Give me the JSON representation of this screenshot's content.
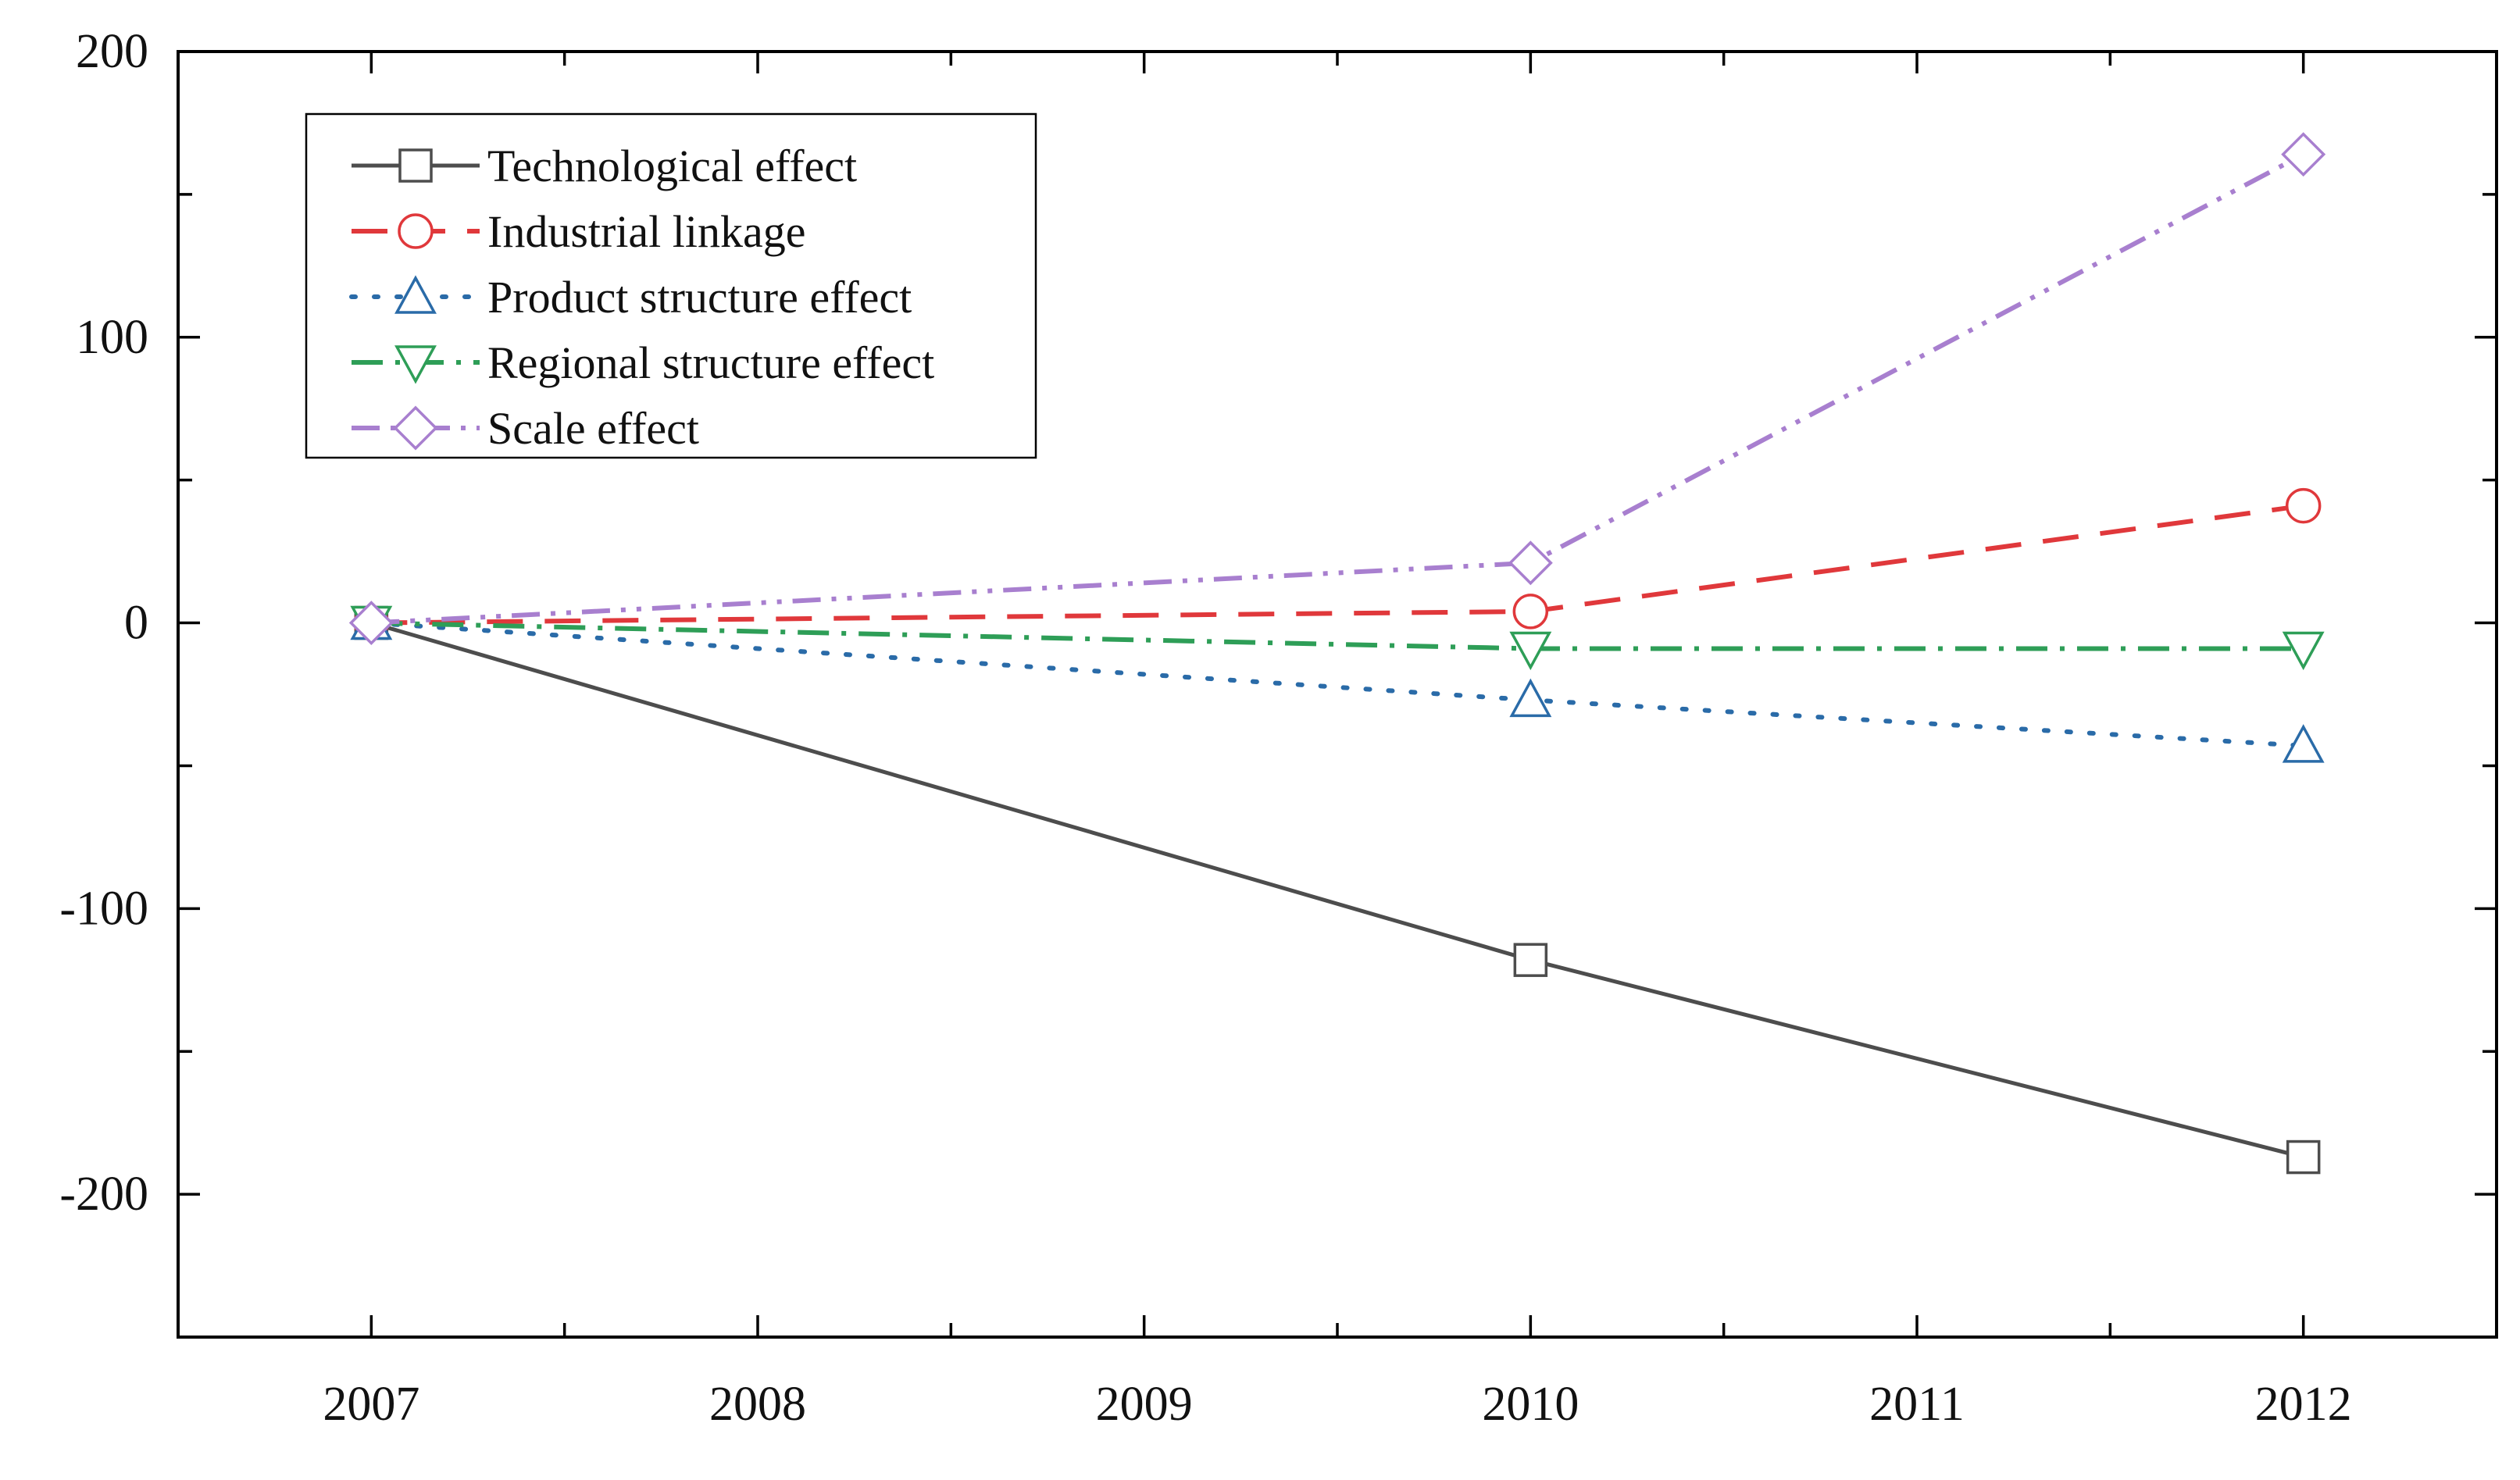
{
  "chart_data": {
    "type": "line",
    "title": "",
    "xlabel": "",
    "ylabel": "",
    "x": [
      2007,
      2010,
      2012
    ],
    "xlim": [
      2006.5,
      2012.5
    ],
    "ylim": [
      -250,
      200
    ],
    "xticks": [
      "2007",
      "2008",
      "2009",
      "2010",
      "2011",
      "2012"
    ],
    "yticks": [
      "200",
      "100",
      "0",
      "-100",
      "-200"
    ],
    "legend_position": "top-left",
    "series": [
      {
        "name": "Technological effect",
        "values": [
          0,
          -118,
          -187
        ],
        "color": "#4d4d4d",
        "linestyle": "solid",
        "marker": "square"
      },
      {
        "name": "Industrial linkage",
        "values": [
          0,
          4,
          41
        ],
        "color": "#e0383b",
        "linestyle": "dashed",
        "marker": "circle"
      },
      {
        "name": "Product structure effect",
        "values": [
          0,
          -27,
          -43
        ],
        "color": "#2a6ba8",
        "linestyle": "dotted",
        "marker": "triangle-up"
      },
      {
        "name": "Regional structure effect",
        "values": [
          0,
          -9,
          -9
        ],
        "color": "#2e9e57",
        "linestyle": "dashdot",
        "marker": "triangle-down"
      },
      {
        "name": "Scale effect",
        "values": [
          0,
          21,
          164
        ],
        "color": "#a87fcf",
        "linestyle": "dashdotdot",
        "marker": "diamond"
      }
    ]
  }
}
